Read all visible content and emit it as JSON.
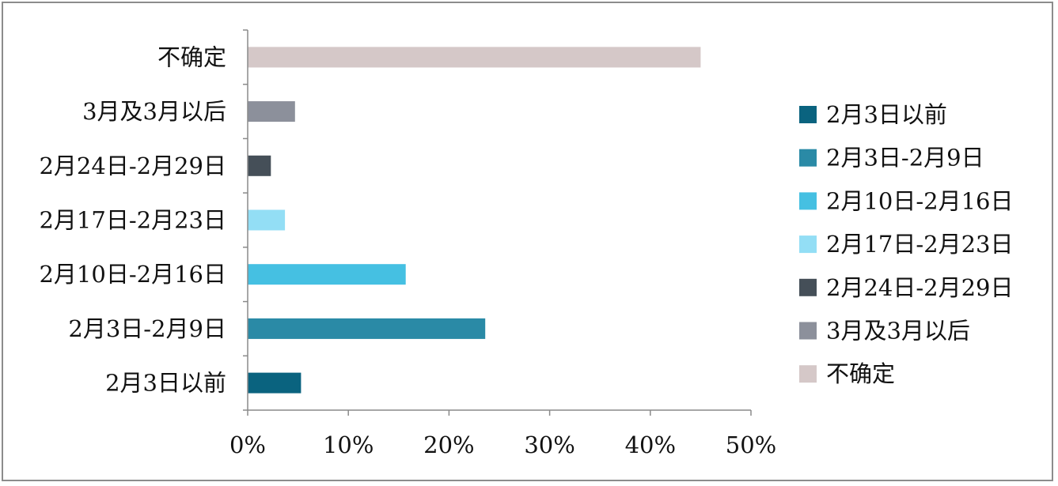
{
  "chart_data": {
    "type": "bar",
    "orientation": "horizontal",
    "title": "",
    "xlabel": "",
    "ylabel": "",
    "xlim": [
      0,
      50
    ],
    "x_ticks": [
      "0%",
      "10%",
      "20%",
      "30%",
      "40%",
      "50%"
    ],
    "grid": false,
    "legend_position": "right",
    "categories": [
      "2月3日以前",
      "2月3日-2月9日",
      "2月10日-2月16日",
      "2月17日-2月23日",
      "2月24日-2月29日",
      "3月及3月以后",
      "不确定"
    ],
    "values": [
      5.3,
      23.6,
      15.7,
      3.7,
      2.3,
      4.7,
      45.0
    ],
    "colors": [
      "#0a637f",
      "#2a8aa6",
      "#45c0e2",
      "#93def5",
      "#454f58",
      "#8c909b",
      "#d5c8c8"
    ],
    "legend": [
      "2月3日以前",
      "2月3日-2月9日",
      "2月10日-2月16日",
      "2月17日-2月23日",
      "2月24日-2月29日",
      "3月及3月以后",
      "不确定"
    ]
  }
}
